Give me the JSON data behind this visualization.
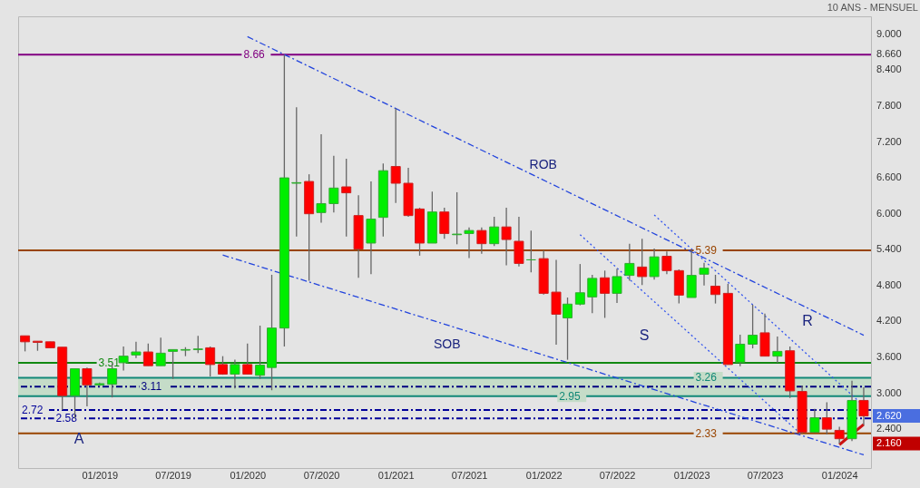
{
  "chart_data": {
    "type": "candlestick",
    "subtitle": "10 ANS - MENSUEL",
    "x": [
      "2018-07",
      "2018-08",
      "2018-09",
      "2018-10",
      "2018-11",
      "2018-12",
      "2019-01",
      "2019-02",
      "2019-03",
      "2019-04",
      "2019-05",
      "2019-06",
      "2019-07",
      "2019-08",
      "2019-09",
      "2019-10",
      "2019-11",
      "2019-12",
      "2020-01",
      "2020-02",
      "2020-03",
      "2020-04",
      "2020-05",
      "2020-06",
      "2020-07",
      "2020-08",
      "2020-09",
      "2020-10",
      "2020-11",
      "2020-12",
      "2021-01",
      "2021-02",
      "2021-03",
      "2021-04",
      "2021-05",
      "2021-06",
      "2021-07",
      "2021-08",
      "2021-09",
      "2021-10",
      "2021-11",
      "2021-12",
      "2022-01",
      "2022-02",
      "2022-03",
      "2022-04",
      "2022-05",
      "2022-06",
      "2022-07",
      "2022-08",
      "2022-09",
      "2022-10",
      "2022-11",
      "2022-12",
      "2023-01",
      "2023-02",
      "2023-03",
      "2023-04",
      "2023-05",
      "2023-06",
      "2023-07",
      "2023-08",
      "2023-09",
      "2023-10",
      "2023-11",
      "2023-12",
      "2024-01",
      "2024-02",
      "2024-03"
    ],
    "ohlc": [
      [
        3.96,
        3.96,
        3.7,
        3.86
      ],
      [
        3.87,
        3.87,
        3.71,
        3.85
      ],
      [
        3.86,
        3.86,
        3.76,
        3.76
      ],
      [
        3.77,
        3.77,
        2.72,
        2.96
      ],
      [
        2.96,
        3.41,
        2.58,
        3.41
      ],
      [
        3.41,
        3.43,
        2.78,
        3.14
      ],
      [
        3.14,
        3.18,
        3.12,
        3.16
      ],
      [
        3.15,
        3.5,
        2.93,
        3.41
      ],
      [
        3.51,
        3.78,
        3.38,
        3.62
      ],
      [
        3.64,
        3.86,
        3.59,
        3.69
      ],
      [
        3.69,
        3.83,
        3.46,
        3.46
      ],
      [
        3.46,
        3.93,
        3.46,
        3.67
      ],
      [
        3.7,
        3.73,
        3.24,
        3.73
      ],
      [
        3.72,
        3.77,
        3.62,
        3.73
      ],
      [
        3.73,
        3.96,
        3.67,
        3.74
      ],
      [
        3.76,
        3.78,
        3.28,
        3.48
      ],
      [
        3.48,
        3.62,
        3.31,
        3.32
      ],
      [
        3.32,
        3.56,
        3.08,
        3.48
      ],
      [
        3.48,
        3.83,
        3.32,
        3.32
      ],
      [
        3.3,
        4.13,
        3.24,
        3.47
      ],
      [
        3.43,
        4.98,
        3.05,
        4.09
      ],
      [
        4.09,
        8.66,
        3.78,
        6.6
      ],
      [
        6.51,
        7.78,
        5.62,
        6.52
      ],
      [
        6.54,
        6.66,
        4.88,
        6.0
      ],
      [
        6.02,
        7.33,
        5.85,
        6.17
      ],
      [
        6.17,
        6.97,
        6.02,
        6.43
      ],
      [
        6.45,
        6.92,
        5.62,
        6.35
      ],
      [
        5.97,
        6.31,
        4.93,
        5.41
      ],
      [
        5.51,
        6.54,
        4.99,
        5.91
      ],
      [
        5.94,
        6.84,
        5.62,
        6.72
      ],
      [
        6.79,
        7.76,
        6.18,
        6.51
      ],
      [
        6.51,
        6.77,
        5.95,
        5.97
      ],
      [
        6.08,
        6.1,
        5.3,
        5.51
      ],
      [
        5.51,
        6.37,
        5.51,
        6.03
      ],
      [
        6.03,
        6.1,
        5.58,
        5.67
      ],
      [
        5.65,
        6.36,
        5.49,
        5.66
      ],
      [
        5.67,
        5.77,
        5.26,
        5.72
      ],
      [
        5.72,
        5.77,
        5.33,
        5.5
      ],
      [
        5.5,
        5.95,
        5.46,
        5.78
      ],
      [
        5.78,
        6.1,
        5.14,
        5.57
      ],
      [
        5.54,
        5.95,
        5.12,
        5.17
      ],
      [
        5.23,
        5.72,
        5.02,
        5.23
      ],
      [
        5.25,
        5.39,
        4.65,
        4.67
      ],
      [
        4.69,
        5.23,
        3.81,
        4.32
      ],
      [
        4.26,
        4.6,
        3.56,
        4.49
      ],
      [
        4.49,
        5.16,
        4.47,
        4.68
      ],
      [
        4.61,
        4.98,
        4.34,
        4.92
      ],
      [
        4.93,
        5.05,
        4.26,
        4.67
      ],
      [
        4.67,
        5.08,
        4.51,
        4.95
      ],
      [
        4.97,
        5.5,
        4.88,
        5.17
      ],
      [
        5.11,
        5.58,
        4.81,
        4.95
      ],
      [
        4.95,
        5.42,
        4.9,
        5.28
      ],
      [
        5.29,
        5.37,
        4.99,
        5.05
      ],
      [
        5.05,
        5.07,
        4.5,
        4.64
      ],
      [
        4.6,
        5.39,
        4.6,
        4.97
      ],
      [
        4.99,
        5.18,
        4.8,
        5.09
      ],
      [
        4.79,
        4.98,
        4.5,
        4.65
      ],
      [
        4.67,
        4.83,
        3.48,
        3.48
      ],
      [
        3.52,
        3.98,
        3.45,
        3.82
      ],
      [
        3.82,
        4.48,
        3.75,
        3.97
      ],
      [
        4.01,
        4.33,
        3.62,
        3.62
      ],
      [
        3.62,
        3.95,
        3.51,
        3.7
      ],
      [
        3.71,
        3.78,
        2.92,
        3.04
      ],
      [
        3.03,
        3.13,
        2.33,
        2.35
      ],
      [
        2.35,
        2.74,
        2.35,
        2.59
      ],
      [
        2.59,
        2.85,
        2.31,
        2.4
      ],
      [
        2.38,
        2.44,
        2.16,
        2.24
      ],
      [
        2.24,
        3.21,
        2.2,
        2.88
      ],
      [
        2.88,
        3.1,
        2.47,
        2.62
      ]
    ],
    "series": [
      {
        "type": "line",
        "name": "ROB",
        "color": "#2244dd",
        "line_style": "dashed",
        "x": [
          "2020-01",
          "2024-03"
        ],
        "values": [
          8.96,
          3.97
        ]
      },
      {
        "type": "line",
        "name": "SOB",
        "color": "#2244dd",
        "line_style": "dashed",
        "x": [
          "2019-11",
          "2024-03"
        ],
        "values": [
          5.31,
          1.97
        ]
      },
      {
        "type": "line",
        "color": "#3355ee",
        "line_style": "dotted",
        "x": [
          "2022-04",
          "2023-10"
        ],
        "values": [
          5.65,
          2.3
        ]
      },
      {
        "type": "line",
        "color": "#3355ee",
        "line_style": "dotted",
        "x": [
          "2022-10",
          "2024-03"
        ],
        "values": [
          5.98,
          2.79
        ]
      },
      {
        "type": "line",
        "color": "#cc1111",
        "line_style": "solid",
        "x": [
          "2024-01",
          "2024-03"
        ],
        "values": [
          2.14,
          2.48
        ]
      }
    ],
    "ref_lines": [
      {
        "axis": "y",
        "value": 8.66,
        "label": "8.66",
        "color": "#800080"
      },
      {
        "axis": "y",
        "value": 5.39,
        "label": "5.39",
        "color": "#994400"
      },
      {
        "axis": "y",
        "value": 3.51,
        "label": "3.51",
        "color": "#118811"
      },
      {
        "axis": "y",
        "value": 3.11,
        "label": "3.11",
        "color": "#000080",
        "line_style": "dashed"
      },
      {
        "axis": "y",
        "value": 3.26,
        "label": "3.26",
        "color": "#118877"
      },
      {
        "axis": "y",
        "value": 2.95,
        "label": "2.95",
        "color": "#118877"
      },
      {
        "axis": "y",
        "value": 2.72,
        "label": "2.72",
        "color": "#000099",
        "line_style": "dashed"
      },
      {
        "axis": "y",
        "value": 2.58,
        "label": "2.58",
        "color": "#000099",
        "line_style": "dashed"
      },
      {
        "axis": "y",
        "value": 2.33,
        "label": "2.33",
        "color": "#994400"
      }
    ],
    "bands": [
      {
        "axis": "y",
        "from": 2.95,
        "to": 3.26,
        "color": "#c5dcc8"
      }
    ],
    "annotations": [
      "A",
      "S",
      "R"
    ],
    "xlim": [
      "2018-06-14",
      "2024-03-19"
    ],
    "xticks": [
      {
        "value": "2019-01",
        "label": "01/2019"
      },
      {
        "value": "2019-07",
        "label": "07/2019"
      },
      {
        "value": "2020-01",
        "label": "01/2020"
      },
      {
        "value": "2020-07",
        "label": "07/2020"
      },
      {
        "value": "2021-01",
        "label": "01/2021"
      },
      {
        "value": "2021-07",
        "label": "07/2021"
      },
      {
        "value": "2022-01",
        "label": "01/2022"
      },
      {
        "value": "2022-07",
        "label": "07/2022"
      },
      {
        "value": "2023-01",
        "label": "01/2023"
      },
      {
        "value": "2023-07",
        "label": "07/2023"
      },
      {
        "value": "2024-01",
        "label": "01/2024"
      }
    ],
    "ylim": [
      1.75,
      9.3
    ],
    "yticks": [
      {
        "value": 2.16,
        "label": "2.160"
      },
      {
        "value": 2.4,
        "label": "2.400"
      },
      {
        "value": 2.62,
        "label": "2.620"
      },
      {
        "value": 3.0,
        "label": "3.000"
      },
      {
        "value": 3.6,
        "label": "3.600"
      },
      {
        "value": 4.2,
        "label": "4.200"
      },
      {
        "value": 4.8,
        "label": "4.800"
      },
      {
        "value": 5.4,
        "label": "5.400"
      },
      {
        "value": 6.0,
        "label": "6.000"
      },
      {
        "value": 6.6,
        "label": "6.600"
      },
      {
        "value": 7.2,
        "label": "7.200"
      },
      {
        "value": 7.8,
        "label": "7.800"
      },
      {
        "value": 8.4,
        "label": "8.400"
      },
      {
        "value": 8.66,
        "label": "8.660"
      },
      {
        "value": 9.0,
        "label": "9.000"
      }
    ]
  }
}
